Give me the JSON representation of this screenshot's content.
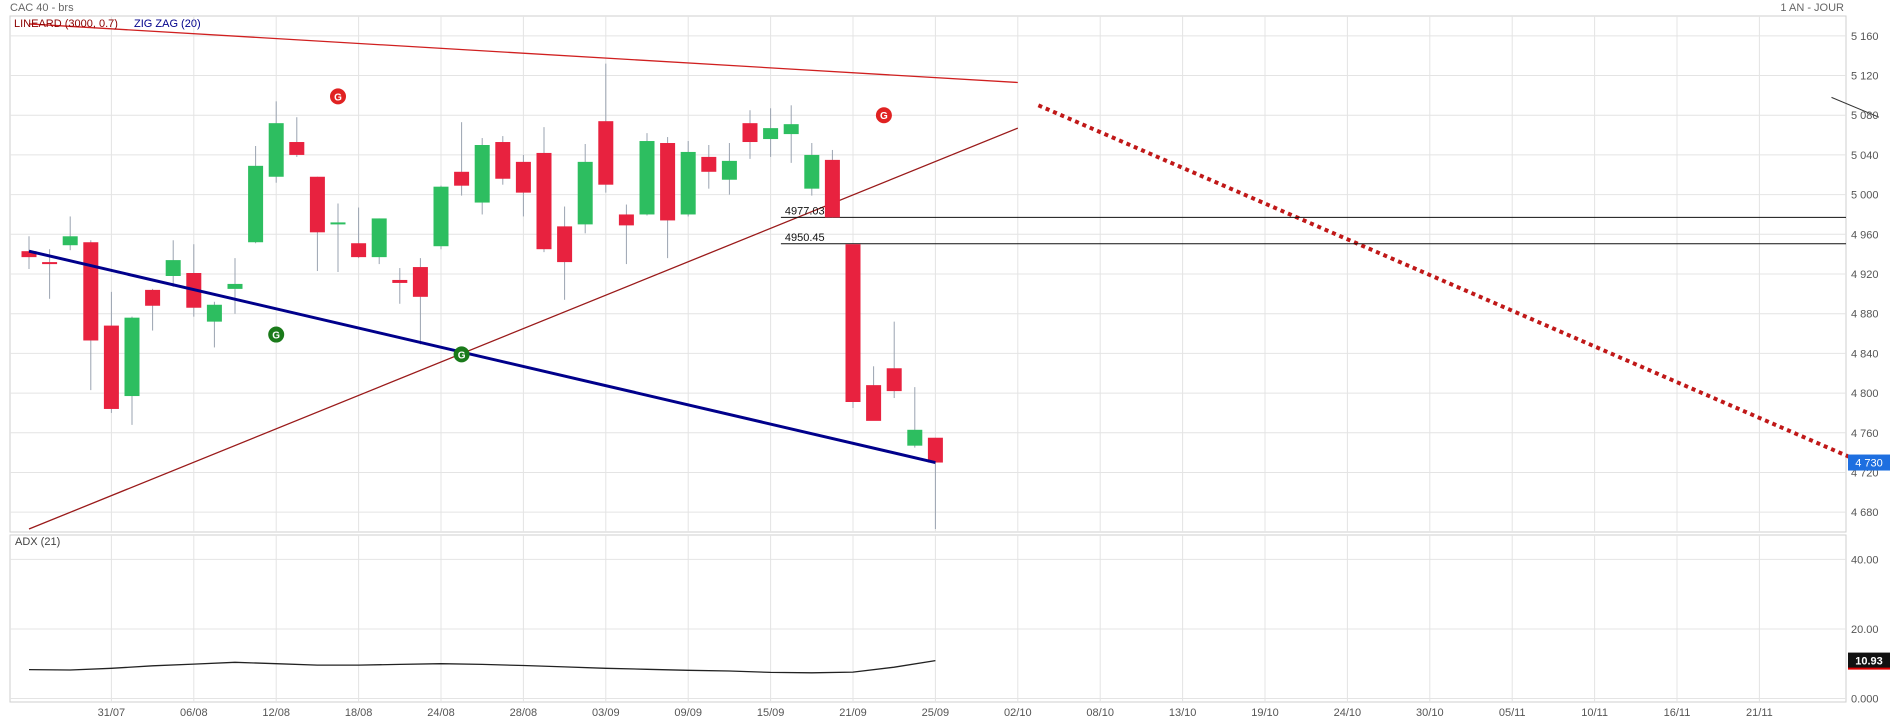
{
  "header": {
    "symbol_label": "CAC 40 - brs",
    "period_label": "1 AN - JOUR",
    "indicator_1": "LINEARD (3000, 0.7)",
    "indicator_2": "ZIG ZAG (20)"
  },
  "colors": {
    "up": "#2dbe60",
    "down": "#e8223f",
    "grid": "#e4e4e4",
    "trend_red": "#d02020",
    "trend_dark_red": "#9a1a1a",
    "zigzag": "#00008b",
    "price_badge": "#1e6fe0",
    "adx_badge": "#111111"
  },
  "chart_data": [
    {
      "type": "candlestick",
      "title": "CAC 40 - brs",
      "ylim": [
        4660,
        5180
      ],
      "yticks": [
        4680,
        4720,
        4760,
        4800,
        4840,
        4880,
        4920,
        4960,
        5000,
        5040,
        5080,
        5120,
        5160
      ],
      "ytick_labels": [
        "4 680",
        "4 720",
        "4 760",
        "4 800",
        "4 840",
        "4 880",
        "4 920",
        "4 960",
        "5 000",
        "5 040",
        "5 080",
        "5 120",
        "5 160"
      ],
      "xtick_labels": [
        "31/07",
        "06/08",
        "12/08",
        "18/08",
        "24/08",
        "28/08",
        "03/09",
        "09/09",
        "15/09",
        "21/09",
        "25/09",
        "02/10",
        "08/10",
        "13/10",
        "19/10",
        "24/10",
        "30/10",
        "05/11",
        "10/11",
        "16/11",
        "21/11"
      ],
      "xtick_index": [
        4,
        8,
        12,
        16,
        20,
        24,
        28,
        32,
        36,
        40,
        44,
        48,
        52,
        56,
        60,
        64,
        68,
        72,
        76,
        80,
        84
      ],
      "last_price_label": "4 730",
      "candles": [
        {
          "i": 0,
          "o": 4943,
          "h": 4958,
          "l": 4925,
          "c": 4937
        },
        {
          "i": 1,
          "o": 4932,
          "h": 4945,
          "l": 4895,
          "c": 4930
        },
        {
          "i": 2,
          "o": 4949,
          "h": 4978,
          "l": 4944,
          "c": 4958
        },
        {
          "i": 3,
          "o": 4952,
          "h": 4954,
          "l": 4803,
          "c": 4853
        },
        {
          "i": 4,
          "o": 4868,
          "h": 4902,
          "l": 4780,
          "c": 4784
        },
        {
          "i": 5,
          "o": 4797,
          "h": 4877,
          "l": 4768,
          "c": 4876
        },
        {
          "i": 6,
          "o": 4904,
          "h": 4905,
          "l": 4863,
          "c": 4888
        },
        {
          "i": 7,
          "o": 4918,
          "h": 4954,
          "l": 4907,
          "c": 4934
        },
        {
          "i": 8,
          "o": 4921,
          "h": 4950,
          "l": 4877,
          "c": 4886
        },
        {
          "i": 9,
          "o": 4872,
          "h": 4892,
          "l": 4846,
          "c": 4889
        },
        {
          "i": 10,
          "o": 4905,
          "h": 4936,
          "l": 4880,
          "c": 4910
        },
        {
          "i": 11,
          "o": 4952,
          "h": 5049,
          "l": 4951,
          "c": 5029
        },
        {
          "i": 12,
          "o": 5018,
          "h": 5094,
          "l": 5012,
          "c": 5072
        },
        {
          "i": 13,
          "o": 5053,
          "h": 5078,
          "l": 5038,
          "c": 5040
        },
        {
          "i": 14,
          "o": 5018,
          "h": 5018,
          "l": 4923,
          "c": 4962
        },
        {
          "i": 15,
          "o": 4972,
          "h": 4991,
          "l": 4922,
          "c": 4972
        },
        {
          "i": 16,
          "o": 4951,
          "h": 4987,
          "l": 4936,
          "c": 4937
        },
        {
          "i": 17,
          "o": 4937,
          "h": 4976,
          "l": 4930,
          "c": 4976
        },
        {
          "i": 18,
          "o": 4914,
          "h": 4926,
          "l": 4890,
          "c": 4911
        },
        {
          "i": 19,
          "o": 4927,
          "h": 4936,
          "l": 4849,
          "c": 4897
        },
        {
          "i": 20,
          "o": 4948,
          "h": 5009,
          "l": 4945,
          "c": 5008
        },
        {
          "i": 21,
          "o": 5023,
          "h": 5073,
          "l": 4999,
          "c": 5009
        },
        {
          "i": 22,
          "o": 4992,
          "h": 5057,
          "l": 4980,
          "c": 5050
        },
        {
          "i": 23,
          "o": 5053,
          "h": 5059,
          "l": 5010,
          "c": 5016
        },
        {
          "i": 24,
          "o": 5033,
          "h": 5040,
          "l": 4978,
          "c": 5002
        },
        {
          "i": 25,
          "o": 5042,
          "h": 5068,
          "l": 4942,
          "c": 4945
        },
        {
          "i": 26,
          "o": 4968,
          "h": 4988,
          "l": 4894,
          "c": 4932
        },
        {
          "i": 27,
          "o": 4970,
          "h": 5051,
          "l": 4961,
          "c": 5033
        },
        {
          "i": 28,
          "o": 5074,
          "h": 5132,
          "l": 5002,
          "c": 5010
        },
        {
          "i": 29,
          "o": 4980,
          "h": 4990,
          "l": 4930,
          "c": 4969
        },
        {
          "i": 30,
          "o": 4980,
          "h": 5062,
          "l": 4979,
          "c": 5054
        },
        {
          "i": 31,
          "o": 5052,
          "h": 5058,
          "l": 4936,
          "c": 4974
        },
        {
          "i": 32,
          "o": 4980,
          "h": 5054,
          "l": 4978,
          "c": 5043
        },
        {
          "i": 33,
          "o": 5038,
          "h": 5050,
          "l": 5006,
          "c": 5023
        },
        {
          "i": 34,
          "o": 5015,
          "h": 5052,
          "l": 5000,
          "c": 5034
        },
        {
          "i": 35,
          "o": 5072,
          "h": 5085,
          "l": 5036,
          "c": 5053
        },
        {
          "i": 36,
          "o": 5056,
          "h": 5087,
          "l": 5038,
          "c": 5067
        },
        {
          "i": 37,
          "o": 5061,
          "h": 5090,
          "l": 5032,
          "c": 5071
        },
        {
          "i": 38,
          "o": 5006,
          "h": 5052,
          "l": 4999,
          "c": 5040
        },
        {
          "i": 39,
          "o": 5035,
          "h": 5045,
          "l": 4977,
          "c": 4977
        },
        {
          "i": 40,
          "o": 4950,
          "h": 4950,
          "l": 4785,
          "c": 4791
        },
        {
          "i": 41,
          "o": 4808,
          "h": 4827,
          "l": 4773,
          "c": 4772
        },
        {
          "i": 42,
          "o": 4825,
          "h": 4872,
          "l": 4795,
          "c": 4802
        },
        {
          "i": 43,
          "o": 4747,
          "h": 4806,
          "l": 4745,
          "c": 4763
        },
        {
          "i": 44,
          "o": 4755,
          "h": 4755,
          "l": 4663,
          "c": 4730
        }
      ],
      "zigzag_line": [
        {
          "i": 0,
          "v": 4943
        },
        {
          "i": 44,
          "v": 4730
        }
      ],
      "support_lines": [
        {
          "value": 4977.03,
          "label": "4977.03",
          "from_i": 36.5
        },
        {
          "value": 4950.45,
          "label": "4950.45",
          "from_i": 36.5
        }
      ],
      "trend_upper": [
        {
          "i": 0,
          "v": 5172
        },
        {
          "i": 48,
          "v": 5113
        }
      ],
      "trend_lower": [
        {
          "i": 0,
          "v": 4663
        },
        {
          "i": 48,
          "v": 5067
        }
      ],
      "trend_projection": [
        {
          "i": 49,
          "v": 5090
        },
        {
          "i": 89,
          "v": 4730
        }
      ],
      "trend_stub": [
        {
          "i": 87.5,
          "v": 5098
        },
        {
          "i": 89.8,
          "v": 5078
        }
      ],
      "signals": [
        {
          "i": 15,
          "v": 5099,
          "label": "G",
          "kind": "sell"
        },
        {
          "i": 12,
          "v": 4859,
          "label": "G",
          "kind": "buy"
        },
        {
          "i": 21,
          "v": 4839,
          "label": "G",
          "kind": "buy"
        },
        {
          "i": 41.5,
          "v": 5080,
          "label": "G",
          "kind": "sell"
        }
      ]
    },
    {
      "type": "line",
      "title": "ADX (21)",
      "ylim": [
        -1,
        47
      ],
      "yticks": [
        0,
        20,
        40
      ],
      "ytick_labels": [
        "0.000",
        "20.00",
        "40.00"
      ],
      "last_value_label": "10.93",
      "series": [
        {
          "x": [
            0,
            2,
            4,
            6,
            8,
            10,
            12,
            14,
            16,
            18,
            20,
            22,
            24,
            26,
            28,
            30,
            32,
            34,
            36,
            38,
            40,
            42,
            44
          ],
          "values": [
            8.3,
            8.2,
            8.7,
            9.4,
            9.9,
            10.4,
            10.0,
            9.6,
            9.6,
            9.8,
            10.0,
            9.8,
            9.5,
            9.1,
            8.7,
            8.4,
            8.1,
            7.9,
            7.5,
            7.4,
            7.6,
            9.0,
            10.9
          ]
        }
      ]
    }
  ]
}
